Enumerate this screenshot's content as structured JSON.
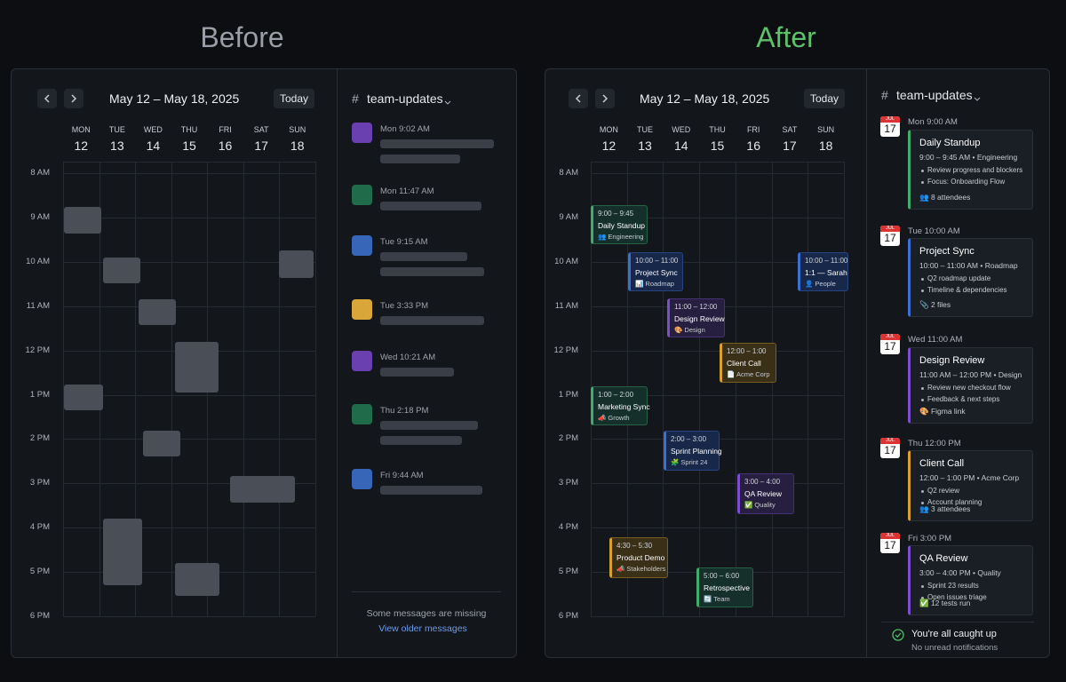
{
  "titles": {
    "before": "Before",
    "after": "After"
  },
  "calendar": {
    "range": "May 12 – May 18, 2025",
    "today": "Today",
    "days": [
      {
        "name": "MON",
        "date": "12"
      },
      {
        "name": "TUE",
        "date": "13"
      },
      {
        "name": "WED",
        "date": "14"
      },
      {
        "name": "THU",
        "date": "15"
      },
      {
        "name": "FRI",
        "date": "16"
      },
      {
        "name": "SAT",
        "date": "17"
      },
      {
        "name": "SUN",
        "date": "18"
      }
    ],
    "hours": [
      "8 AM",
      "9 AM",
      "10 AM",
      "11 AM",
      "12 PM",
      "1 PM",
      "2 PM",
      "3 PM",
      "4 PM",
      "5 PM",
      "6 PM"
    ]
  },
  "channel": {
    "hash": "#",
    "name": "team-updates"
  },
  "before": {
    "messages": [
      "Mon 9:02 AM",
      "Mon 11:47 AM",
      "Tue 9:15 AM",
      "Tue 3:33 PM",
      "Wed 10:21 AM",
      "Thu 2:18 PM",
      "Fri 9:44 AM"
    ],
    "footer": {
      "notice": "Some messages are missing",
      "link": "View older messages"
    }
  },
  "after": {
    "events": [
      {
        "time": "9:00 – 9:45",
        "title": "Daily Standup",
        "tag": "👥 Engineering"
      },
      {
        "time": "10:00 – 11:00",
        "title": "Project Sync",
        "tag": "📊 Roadmap"
      },
      {
        "time": "10:00 – 11:00",
        "title": "1:1 — Sarah",
        "tag": "👤 People"
      },
      {
        "time": "11:00 – 12:00",
        "title": "Design Review",
        "tag": "🎨 Design"
      },
      {
        "time": "12:00 – 1:00",
        "title": "Client Call",
        "tag": "📄 Acme Corp"
      },
      {
        "time": "1:00 – 2:00",
        "title": "Marketing Sync",
        "tag": "📣 Growth"
      },
      {
        "time": "2:00 – 3:00",
        "title": "Sprint Planning",
        "tag": "🧩 Sprint 24"
      },
      {
        "time": "3:00 – 4:00",
        "title": "QA Review",
        "tag": "✅ Quality"
      },
      {
        "time": "4:30 – 5:30",
        "title": "Product Demo",
        "tag": "📣 Stakeholders"
      },
      {
        "time": "5:00 – 6:00",
        "title": "Retrospective",
        "tag": "🔄 Team"
      }
    ],
    "calendar_icon": {
      "month": "JUL",
      "day": "17"
    },
    "cards": [
      {
        "when": "Mon 9:00 AM",
        "title": "Daily Standup",
        "meta": "9:00 – 9:45 AM  •  Engineering",
        "bullets": [
          "Review progress and blockers",
          "Focus: Onboarding Flow"
        ],
        "footer": "👥 8 attendees"
      },
      {
        "when": "Tue 10:00 AM",
        "title": "Project Sync",
        "meta": "10:00 – 11:00 AM  •  Roadmap",
        "bullets": [
          "Q2 roadmap update",
          "Timeline & dependencies"
        ],
        "footer": "📎 2 files"
      },
      {
        "when": "Wed 11:00 AM",
        "title": "Design Review",
        "meta": "11:00 AM – 12:00 PM  •  Design",
        "bullets": [
          "Review new checkout flow",
          "Feedback & next steps"
        ],
        "footer": "🎨 Figma link"
      },
      {
        "when": "Thu 12:00 PM",
        "title": "Client Call",
        "meta": "12:00 – 1:00 PM  •  Acme Corp",
        "bullets": [
          "Q2 review",
          "Account planning"
        ],
        "footer": "👥 3 attendees"
      },
      {
        "when": "Fri 3:00 PM",
        "title": "QA Review",
        "meta": "3:00 – 4:00 PM  •  Quality",
        "bullets": [
          "Sprint 23 results",
          "Open issues triage"
        ],
        "footer": "✅ 12 tests run"
      }
    ],
    "footer": {
      "title": "You're all caught up",
      "subtitle": "No unread notifications"
    }
  }
}
